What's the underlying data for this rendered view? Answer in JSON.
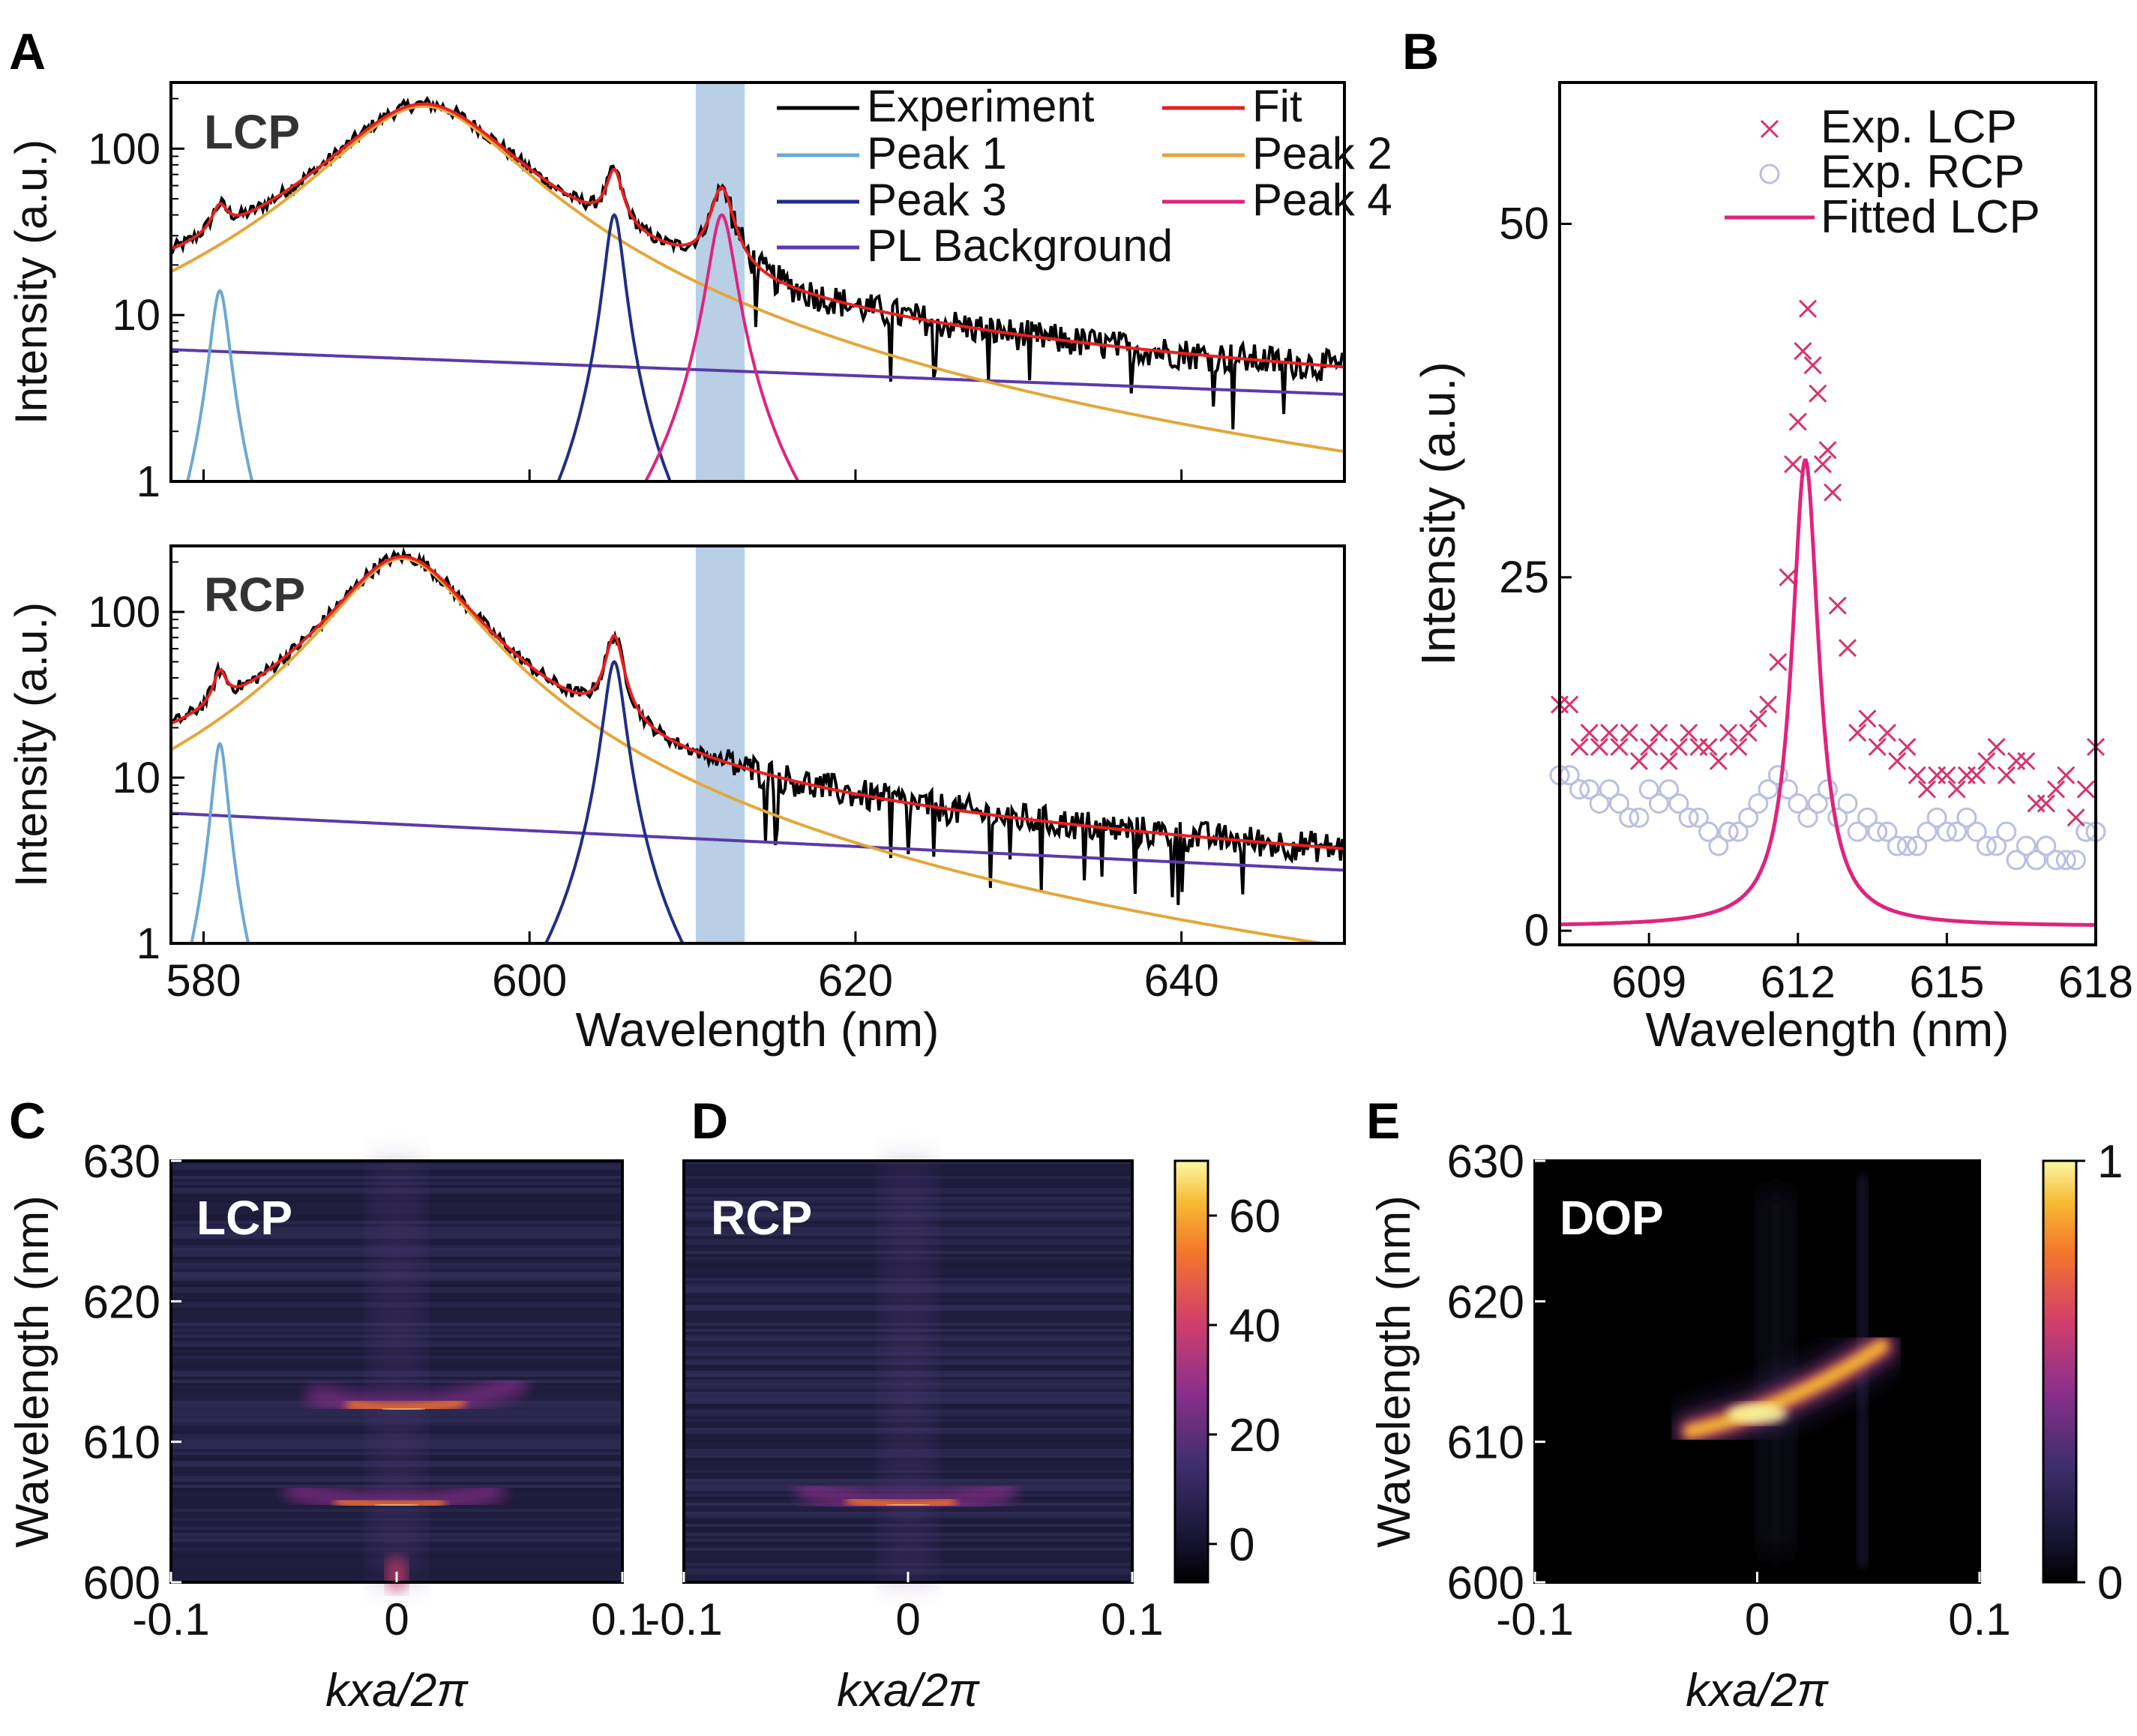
{
  "panels": {
    "A": "A",
    "B": "B",
    "C": "C",
    "D": "D",
    "E": "E"
  },
  "colors": {
    "experiment": "#000000",
    "fit": "#e8201f",
    "peak1": "#6ca8d4",
    "peak2": "#e3a73a",
    "peak3": "#1f2e86",
    "peak4": "#e0237e",
    "background": "#5b3aa8",
    "band": "#b8cfe6",
    "lcp_marker": "#d6336c",
    "rcp_marker": "#b9bfe2",
    "fitted_lcp": "#e0237e"
  },
  "chart_data": [
    {
      "id": "A-LCP",
      "type": "line",
      "inset_label": "LCP",
      "xlabel": "",
      "ylabel": "Intensity (a.u.)",
      "xlim": [
        578,
        650
      ],
      "ylim": [
        1,
        250
      ],
      "yscale": "log",
      "yticks": [
        1,
        10,
        100
      ],
      "ytick_labels": [
        "1",
        "10",
        "100"
      ],
      "highlight_band": [
        610.2,
        613.2
      ],
      "legend": [
        {
          "label": "Experiment",
          "color": "#000000"
        },
        {
          "label": "Fit",
          "color": "#e8201f"
        },
        {
          "label": "Peak 1",
          "color": "#6ca8d4"
        },
        {
          "label": "Peak 2",
          "color": "#e3a73a"
        },
        {
          "label": "Peak 3",
          "color": "#1f2e86"
        },
        {
          "label": "Peak 4",
          "color": "#e0237e"
        },
        {
          "label": "PL Background",
          "color": "#5b3aa8"
        }
      ],
      "legend_position": "top-right",
      "model": {
        "background": {
          "a": 6.2,
          "b": 0.0086,
          "x0": 578
        },
        "peak1": {
          "center": 581,
          "amp": 14,
          "width": 0.55
        },
        "peak2": {
          "center": 593.5,
          "amp": 180,
          "width": 5.2
        },
        "peak3": {
          "center": 605.2,
          "amp": 40,
          "width": 0.55
        },
        "peak4": {
          "center": 611.8,
          "amp": 40,
          "width": 0.75
        }
      }
    },
    {
      "id": "A-RCP",
      "type": "line",
      "inset_label": "RCP",
      "xlabel": "Wavelength (nm)",
      "ylabel": "Intensity (a.u.)",
      "xlim": [
        578,
        650
      ],
      "ylim": [
        1,
        250
      ],
      "yscale": "log",
      "yticks": [
        1,
        10,
        100
      ],
      "ytick_labels": [
        "1",
        "10",
        "100"
      ],
      "xticks": [
        580,
        600,
        620,
        640
      ],
      "xtick_labels": [
        "580",
        "600",
        "620",
        "640"
      ],
      "highlight_band": [
        610.2,
        613.2
      ],
      "model": {
        "background": {
          "a": 6.1,
          "b": 0.011,
          "x0": 578
        },
        "peak1": {
          "center": 581,
          "amp": 16,
          "width": 0.45
        },
        "peak2": {
          "center": 592.2,
          "amp": 210,
          "width": 3.9
        },
        "peak3": {
          "center": 605.2,
          "amp": 50,
          "width": 0.6
        },
        "peak4": {
          "center": 611.8,
          "amp": 0,
          "width": 0.7
        }
      }
    },
    {
      "id": "B",
      "type": "scatter",
      "xlabel": "Wavelength (nm)",
      "ylabel": "Intensity (a.u.)",
      "xlim": [
        607.2,
        618
      ],
      "ylim": [
        -1,
        60
      ],
      "xticks": [
        609,
        612,
        615,
        618
      ],
      "xtick_labels": [
        "609",
        "612",
        "615",
        "618"
      ],
      "yticks": [
        0,
        25,
        50
      ],
      "ytick_labels": [
        "0",
        "25",
        "50"
      ],
      "legend": [
        {
          "label": "Exp. LCP",
          "marker": "x",
          "color": "#d6336c"
        },
        {
          "label": "Exp. RCP",
          "marker": "o",
          "color": "#b9bfe2"
        },
        {
          "label": "Fitted LCP",
          "marker": "line",
          "color": "#e0237e"
        }
      ],
      "legend_position": "top-right",
      "fitted_lcp": {
        "center": 612.15,
        "amp": 33,
        "gamma": 0.33,
        "offset": 0.3
      },
      "lcp_points": [
        [
          607.2,
          16
        ],
        [
          607.4,
          16
        ],
        [
          607.6,
          13
        ],
        [
          607.8,
          14
        ],
        [
          608.0,
          13
        ],
        [
          608.2,
          14
        ],
        [
          608.4,
          13
        ],
        [
          608.6,
          14
        ],
        [
          608.8,
          12
        ],
        [
          609.0,
          13
        ],
        [
          609.2,
          14
        ],
        [
          609.4,
          12
        ],
        [
          609.6,
          13
        ],
        [
          609.8,
          14
        ],
        [
          610.0,
          13
        ],
        [
          610.2,
          13
        ],
        [
          610.4,
          12
        ],
        [
          610.6,
          14
        ],
        [
          610.8,
          13
        ],
        [
          611.0,
          14
        ],
        [
          611.2,
          15
        ],
        [
          611.4,
          16
        ],
        [
          611.6,
          19
        ],
        [
          611.8,
          25
        ],
        [
          611.9,
          33
        ],
        [
          612.0,
          36
        ],
        [
          612.1,
          41
        ],
        [
          612.2,
          44
        ],
        [
          612.3,
          40
        ],
        [
          612.4,
          38
        ],
        [
          612.5,
          33
        ],
        [
          612.6,
          34
        ],
        [
          612.7,
          31
        ],
        [
          612.8,
          23
        ],
        [
          613.0,
          20
        ],
        [
          613.2,
          14
        ],
        [
          613.4,
          15
        ],
        [
          613.6,
          13
        ],
        [
          613.8,
          14
        ],
        [
          614.0,
          12
        ],
        [
          614.2,
          13
        ],
        [
          614.4,
          11
        ],
        [
          614.6,
          10
        ],
        [
          614.8,
          11
        ],
        [
          615.0,
          11
        ],
        [
          615.2,
          10
        ],
        [
          615.4,
          11
        ],
        [
          615.6,
          11
        ],
        [
          615.8,
          12
        ],
        [
          616.0,
          13
        ],
        [
          616.2,
          11
        ],
        [
          616.4,
          12
        ],
        [
          616.6,
          12
        ],
        [
          616.8,
          9
        ],
        [
          617.0,
          9
        ],
        [
          617.2,
          10
        ],
        [
          617.4,
          11
        ],
        [
          617.6,
          8
        ],
        [
          617.8,
          10
        ],
        [
          618.0,
          13
        ]
      ],
      "rcp_points": [
        [
          607.2,
          11
        ],
        [
          607.4,
          11
        ],
        [
          607.6,
          10
        ],
        [
          607.8,
          10
        ],
        [
          608.0,
          9
        ],
        [
          608.2,
          10
        ],
        [
          608.4,
          9
        ],
        [
          608.6,
          8
        ],
        [
          608.8,
          8
        ],
        [
          609.0,
          10
        ],
        [
          609.2,
          9
        ],
        [
          609.4,
          10
        ],
        [
          609.6,
          9
        ],
        [
          609.8,
          8
        ],
        [
          610.0,
          8
        ],
        [
          610.2,
          7
        ],
        [
          610.4,
          6
        ],
        [
          610.6,
          7
        ],
        [
          610.8,
          7
        ],
        [
          611.0,
          8
        ],
        [
          611.2,
          9
        ],
        [
          611.4,
          10
        ],
        [
          611.6,
          11
        ],
        [
          611.8,
          10
        ],
        [
          612.0,
          9
        ],
        [
          612.2,
          8
        ],
        [
          612.4,
          9
        ],
        [
          612.6,
          10
        ],
        [
          612.8,
          8
        ],
        [
          613.0,
          9
        ],
        [
          613.2,
          7
        ],
        [
          613.4,
          8
        ],
        [
          613.6,
          7
        ],
        [
          613.8,
          7
        ],
        [
          614.0,
          6
        ],
        [
          614.2,
          6
        ],
        [
          614.4,
          6
        ],
        [
          614.6,
          7
        ],
        [
          614.8,
          8
        ],
        [
          615.0,
          7
        ],
        [
          615.2,
          7
        ],
        [
          615.4,
          8
        ],
        [
          615.6,
          7
        ],
        [
          615.8,
          6
        ],
        [
          616.0,
          6
        ],
        [
          616.2,
          7
        ],
        [
          616.4,
          5
        ],
        [
          616.6,
          6
        ],
        [
          616.8,
          5
        ],
        [
          617.0,
          6
        ],
        [
          617.2,
          5
        ],
        [
          617.4,
          5
        ],
        [
          617.6,
          5
        ],
        [
          617.8,
          7
        ],
        [
          618.0,
          7
        ]
      ]
    },
    {
      "id": "C",
      "type": "heatmap",
      "inset_label": "LCP",
      "xlabel": "kxa/2π",
      "ylabel": "Wavelength (nm)",
      "xlim": [
        -0.1,
        0.1
      ],
      "ylim": [
        600,
        630
      ],
      "xticks": [
        -0.1,
        0,
        0.1
      ],
      "xtick_labels": [
        "-0.1",
        "0",
        "0.1"
      ],
      "yticks": [
        600,
        610,
        620,
        630
      ],
      "ytick_labels": [
        "600",
        "610",
        "620",
        "630"
      ]
    },
    {
      "id": "D",
      "type": "heatmap",
      "inset_label": "RCP",
      "xlabel": "kxa/2π",
      "xlim": [
        -0.1,
        0.1
      ],
      "ylim": [
        600,
        630
      ],
      "xticks": [
        -0.1,
        0,
        0.1
      ],
      "xtick_labels": [
        "-0.1",
        "0",
        "0.1"
      ],
      "colorbar": {
        "ticks": [
          0,
          20,
          40,
          60
        ],
        "tick_labels": [
          "0",
          "20",
          "40",
          "60"
        ],
        "range": [
          -7,
          70
        ]
      }
    },
    {
      "id": "E",
      "type": "heatmap",
      "inset_label": "DOP",
      "xlabel": "kxa/2π",
      "ylabel": "Wavelength (nm)",
      "xlim": [
        -0.1,
        0.1
      ],
      "ylim": [
        600,
        630
      ],
      "xticks": [
        -0.1,
        0,
        0.1
      ],
      "xtick_labels": [
        "-0.1",
        "0",
        "0.1"
      ],
      "yticks": [
        600,
        610,
        620,
        630
      ],
      "ytick_labels": [
        "600",
        "610",
        "620",
        "630"
      ],
      "colorbar": {
        "ticks": [
          0,
          1
        ],
        "tick_labels": [
          "0",
          "1"
        ],
        "range": [
          0,
          1
        ]
      }
    }
  ]
}
